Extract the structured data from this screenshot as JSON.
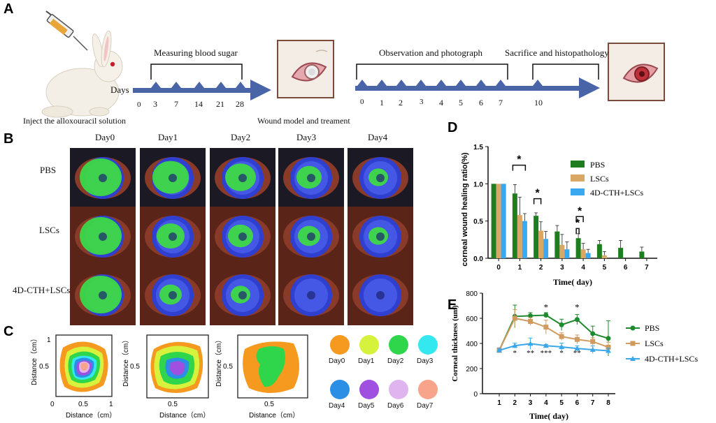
{
  "panels": {
    "a": "A",
    "b": "B",
    "c": "C",
    "d": "D",
    "e": "E"
  },
  "timeline": {
    "blood_sugar_label": "Measuring blood sugar",
    "days_label": "Days",
    "days_ticks": [
      "0",
      "3",
      "7",
      "14",
      "21",
      "28"
    ],
    "inject_label": "Inject the alloxouracil solution",
    "wound_label": "Wound model and treament",
    "observe_label": "Observation and photograph",
    "sacrifice_label": "Sacrifice and histopathology",
    "obs_ticks": [
      "0",
      "1",
      "2",
      "3",
      "4",
      "5",
      "6",
      "7",
      "10"
    ]
  },
  "grid": {
    "columns": [
      "Day0",
      "Day1",
      "Day2",
      "Day3",
      "Day4"
    ],
    "rows": [
      "PBS",
      "LSCs",
      "4D-CTH+LSCs"
    ]
  },
  "panel_c": {
    "axis_x_label": "Distance（cm）",
    "axis_y_label": "Distance（cm）",
    "ticks": {
      "zero": "0",
      "half": "0.5",
      "one": "1"
    },
    "legend": [
      {
        "label": "Day0",
        "color": "#f59a1e"
      },
      {
        "label": "Day1",
        "color": "#d7f23c"
      },
      {
        "label": "Day2",
        "color": "#2fd64c"
      },
      {
        "label": "Day3",
        "color": "#33e8ee"
      },
      {
        "label": "Day4",
        "color": "#2b8fe6"
      },
      {
        "label": "Day5",
        "color": "#a050e0"
      },
      {
        "label": "Day6",
        "color": "#e0b4ee"
      },
      {
        "label": "Day7",
        "color": "#f7a48a"
      }
    ]
  },
  "chart_data": [
    {
      "type": "bar",
      "title": "",
      "xlabel": "Time( day)",
      "ylabel": "corneal wound healing ratio(%)",
      "categories": [
        "0",
        "1",
        "2",
        "3",
        "4",
        "5",
        "6",
        "7"
      ],
      "ylim": [
        0,
        1.5
      ],
      "yticks": [
        "0.0",
        "0.5",
        "1.0",
        "1.5"
      ],
      "series": [
        {
          "name": "PBS",
          "color": "#1e7d1e",
          "values": [
            1.0,
            0.87,
            0.57,
            0.36,
            0.27,
            0.19,
            0.14,
            0.09
          ],
          "errors": [
            0,
            0.12,
            0.04,
            0.08,
            0.06,
            0.05,
            0.1,
            0.06
          ]
        },
        {
          "name": "LSCs",
          "color": "#d9a766",
          "values": [
            1.0,
            0.58,
            0.37,
            0.18,
            0.12,
            0.04,
            0,
            0
          ],
          "errors": [
            0,
            0.24,
            0.12,
            0.14,
            0.08,
            0.05,
            0,
            0
          ]
        },
        {
          "name": "4D-CTH+LSCs",
          "color": "#3aa8f0",
          "values": [
            1.0,
            0.5,
            0.26,
            0.12,
            0.07,
            0,
            0,
            0
          ],
          "errors": [
            0,
            0.1,
            0.1,
            0.1,
            0.05,
            0,
            0,
            0
          ]
        }
      ],
      "annotations": [
        {
          "text": "*",
          "category": "1"
        },
        {
          "text": "*",
          "category": "2"
        },
        {
          "text": "*",
          "category": "4"
        },
        {
          "text": "*",
          "category": "4"
        }
      ]
    },
    {
      "type": "line",
      "xlabel": "Time( day)",
      "ylabel": "Corneal thickness (um)",
      "x": [
        1,
        2,
        3,
        4,
        5,
        6,
        7,
        8
      ],
      "ylim": [
        0,
        800
      ],
      "yticks": [
        "0",
        "200",
        "400",
        "600",
        "800"
      ],
      "xticks": [
        "1",
        "2",
        "3",
        "4",
        "5",
        "6",
        "7",
        "8"
      ],
      "series": [
        {
          "name": "PBS",
          "color": "#1e8a2e",
          "marker": "circle",
          "values": [
            345,
            615,
            620,
            625,
            548,
            590,
            478,
            440
          ],
          "errors": [
            20,
            90,
            25,
            20,
            45,
            40,
            60,
            140
          ]
        },
        {
          "name": "LSCs",
          "color": "#d19a5e",
          "marker": "square",
          "values": [
            345,
            600,
            575,
            530,
            455,
            432,
            415,
            370
          ],
          "errors": [
            20,
            70,
            30,
            55,
            30,
            35,
            30,
            40
          ]
        },
        {
          "name": "4D-CTH+LSCs",
          "color": "#3aa8e8",
          "marker": "triangle",
          "values": [
            345,
            382,
            398,
            382,
            372,
            360,
            350,
            342
          ],
          "errors": [
            15,
            20,
            45,
            10,
            30,
            20,
            30,
            20
          ]
        }
      ],
      "annotations_above": [
        {
          "x": 4,
          "text": "*"
        },
        {
          "x": 6,
          "text": "*"
        }
      ],
      "annotations_below": [
        {
          "x": 2,
          "text": "*"
        },
        {
          "x": 3,
          "text": "**"
        },
        {
          "x": 4,
          "text": "***"
        },
        {
          "x": 5,
          "text": "*"
        },
        {
          "x": 6,
          "text": "**"
        }
      ]
    }
  ]
}
